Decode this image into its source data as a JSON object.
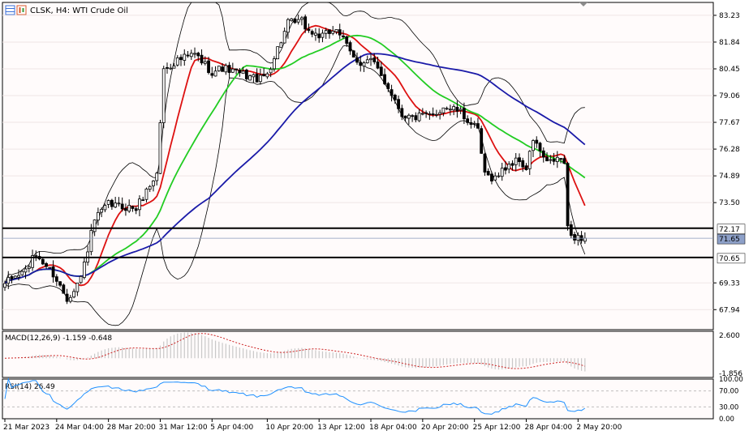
{
  "header": {
    "symbol_line": "CLSK, H4:  WTI Crude Oil",
    "toolbar_icons": [
      "grid-icon",
      "candles-icon"
    ]
  },
  "colors": {
    "background": "#ffffff",
    "plot_background": "#fffbfb",
    "candle": "#000000",
    "bollinger": "#000000",
    "ma_fast": "#dd1111",
    "ma_mid": "#22cc22",
    "ma_slow": "#1a1aa8",
    "macd_hist": "#c8c8c8",
    "macd_signal": "#cc2222",
    "rsi_line": "#1e90ff",
    "level_line": "#000000",
    "price_line": "#8899bb"
  },
  "price_axis": {
    "ticks": [
      "83.23",
      "81.84",
      "80.45",
      "79.06",
      "77.67",
      "76.28",
      "74.89",
      "73.50",
      "69.33",
      "67.94"
    ],
    "tick_values": [
      83.23,
      81.84,
      80.45,
      79.06,
      77.67,
      76.28,
      74.89,
      73.5,
      69.33,
      67.94
    ],
    "ylim": [
      66.9,
      83.9
    ],
    "level_labels": [
      "72.17",
      "70.65"
    ],
    "level_values": [
      72.17,
      70.65
    ],
    "current_price_label": "71.65",
    "current_price": 71.65
  },
  "time_axis": {
    "labels": [
      "21 Mar 2023",
      "24 Mar 04:00",
      "28 Mar 20:00",
      "31 Mar 12:00",
      "5 Apr 04:00",
      "10 Apr 20:00",
      "13 Apr 12:00",
      "18 Apr 04:00",
      "20 Apr 20:00",
      "25 Apr 12:00",
      "28 Apr 04:00",
      "2 May 20:00"
    ],
    "label_bars": [
      0,
      15,
      30,
      45,
      60,
      76,
      91,
      106,
      121,
      136,
      151,
      166
    ]
  },
  "macd_panel": {
    "label": "MACD(12,26,9) -1.159 -0.648",
    "ticks": [
      "2.600",
      "-1.856"
    ],
    "tick_values": [
      2.6,
      -1.856
    ],
    "ylim": [
      -1.856,
      2.6
    ]
  },
  "rsi_panel": {
    "label": "RSI(14) 26.49",
    "ticks": [
      "100.00",
      "70.00",
      "30.00",
      "0.00"
    ],
    "tick_values": [
      100,
      70,
      30,
      0
    ],
    "ylim": [
      0,
      100
    ]
  },
  "chart_data": {
    "type": "candlestick",
    "title": "CLSK, H4:  WTI Crude Oil",
    "bar_count": 169,
    "close_keyframes": [
      [
        0,
        69.3
      ],
      [
        6,
        70.0
      ],
      [
        9,
        70.8
      ],
      [
        14,
        69.8
      ],
      [
        18,
        68.5
      ],
      [
        22,
        69.6
      ],
      [
        26,
        72.6
      ],
      [
        30,
        73.4
      ],
      [
        38,
        73.2
      ],
      [
        44,
        75.0
      ],
      [
        46,
        80.4
      ],
      [
        50,
        80.9
      ],
      [
        55,
        81.2
      ],
      [
        60,
        80.3
      ],
      [
        63,
        80.5
      ],
      [
        66,
        80.3
      ],
      [
        70,
        80.1
      ],
      [
        74,
        79.9
      ],
      [
        76,
        80.2
      ],
      [
        82,
        82.8
      ],
      [
        86,
        82.9
      ],
      [
        88,
        82.4
      ],
      [
        92,
        82.1
      ],
      [
        96,
        82.6
      ],
      [
        99,
        81.6
      ],
      [
        101,
        81.0
      ],
      [
        103,
        80.8
      ],
      [
        106,
        80.9
      ],
      [
        109,
        80.1
      ],
      [
        112,
        79.2
      ],
      [
        115,
        78.1
      ],
      [
        118,
        77.9
      ],
      [
        121,
        78.0
      ],
      [
        124,
        78.0
      ],
      [
        127,
        78.5
      ],
      [
        131,
        78.3
      ],
      [
        134,
        77.8
      ],
      [
        137,
        77.2
      ],
      [
        139,
        74.9
      ],
      [
        142,
        74.8
      ],
      [
        146,
        75.5
      ],
      [
        149,
        75.7
      ],
      [
        151,
        75.2
      ],
      [
        153,
        76.8
      ],
      [
        157,
        75.5
      ],
      [
        160,
        75.8
      ],
      [
        162,
        75.6
      ],
      [
        163,
        72.1
      ],
      [
        164,
        71.8
      ],
      [
        166,
        71.7
      ],
      [
        168,
        71.65
      ]
    ],
    "series": [
      {
        "name": "Bollinger Bands",
        "kind": "bands"
      },
      {
        "name": "Fast MA",
        "kind": "ma",
        "period": 10
      },
      {
        "name": "Mid MA",
        "kind": "ma",
        "period": 25
      },
      {
        "name": "Slow MA",
        "kind": "ma",
        "period": 60
      }
    ],
    "horizontal_levels": [
      72.17,
      70.65
    ],
    "macd": {
      "fast": 12,
      "slow": 26,
      "signal": 9,
      "main": -1.159,
      "signal_value": -0.648
    },
    "rsi": {
      "period": 14,
      "value": 26.49,
      "levels": [
        70,
        30
      ]
    }
  }
}
